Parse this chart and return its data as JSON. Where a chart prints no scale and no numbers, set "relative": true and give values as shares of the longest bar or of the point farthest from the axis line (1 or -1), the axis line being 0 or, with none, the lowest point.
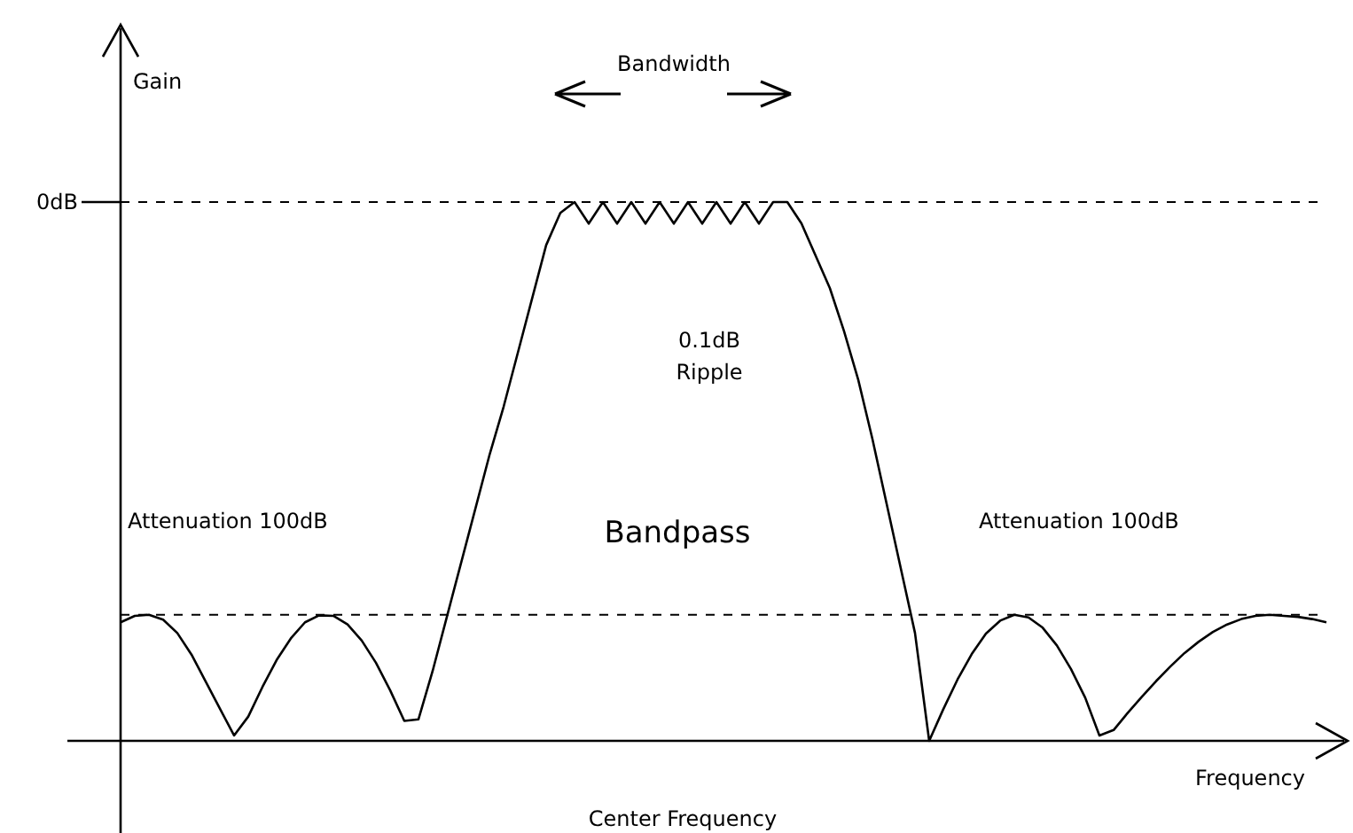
{
  "chart_data": {
    "type": "line",
    "relative": true,
    "xlabel": "Frequency",
    "categories": [
      null,
      null,
      null,
      null,
      null,
      null,
      null,
      null,
      null,
      null,
      null,
      null,
      null,
      null,
      null,
      null,
      null,
      null,
      null,
      null,
      null,
      null,
      null,
      null,
      null,
      null,
      null,
      null,
      null,
      null,
      null,
      null,
      null,
      null,
      null,
      null,
      null,
      null,
      null,
      null,
      null,
      null,
      null,
      null,
      null,
      null,
      null,
      null,
      null,
      null,
      null,
      null,
      null,
      null,
      null,
      null,
      null,
      null,
      null,
      null,
      null,
      null,
      null,
      null,
      null,
      null,
      null,
      null,
      null,
      null,
      null,
      null,
      null,
      null,
      null,
      null,
      null,
      null,
      null,
      null,
      null,
      null,
      null,
      null,
      null,
      null
    ],
    "series": [
      {
        "color": "#000000",
        "values": [
          0.22,
          0.232,
          0.234,
          0.225,
          0.2,
          0.16,
          0.11,
          0.06,
          0.01,
          0.045,
          0.1,
          0.15,
          0.19,
          0.22,
          0.233,
          0.232,
          0.216,
          0.186,
          0.145,
          0.094,
          0.037,
          0.04,
          0.13,
          0.23,
          0.33,
          0.43,
          0.53,
          0.62,
          0.72,
          0.82,
          0.92,
          0.98,
          1.0,
          0.96,
          1.0,
          0.96,
          1.0,
          0.96,
          1.0,
          0.96,
          1.0,
          0.96,
          1.0,
          0.96,
          1.0,
          0.96,
          1.0,
          1.0,
          0.96,
          0.9,
          0.84,
          0.76,
          0.67,
          0.56,
          0.44,
          0.32,
          0.2,
          0.0,
          0.059,
          0.114,
          0.161,
          0.199,
          0.223,
          0.234,
          0.229,
          0.21,
          0.177,
          0.133,
          0.08,
          0.01,
          0.02,
          0.052,
          0.082,
          0.111,
          0.138,
          0.163,
          0.184,
          0.202,
          0.216,
          0.226,
          0.232,
          0.234,
          0.232,
          0.23,
          0.226,
          0.22
        ]
      }
    ],
    "ref_lines": [
      {
        "axis": "y",
        "value": 1,
        "label": "0dB",
        "line_style": "dashed"
      },
      {
        "axis": "y",
        "value": 0.234,
        "label": null,
        "line_style": "dashed"
      }
    ],
    "annotations": [
      "Gain",
      "Bandwidth",
      "0.1dB Ripple",
      "Bandpass",
      "Attenuation 100dB",
      "Attenuation 100dB",
      "Center Frequency"
    ],
    "line_style": "solid"
  }
}
